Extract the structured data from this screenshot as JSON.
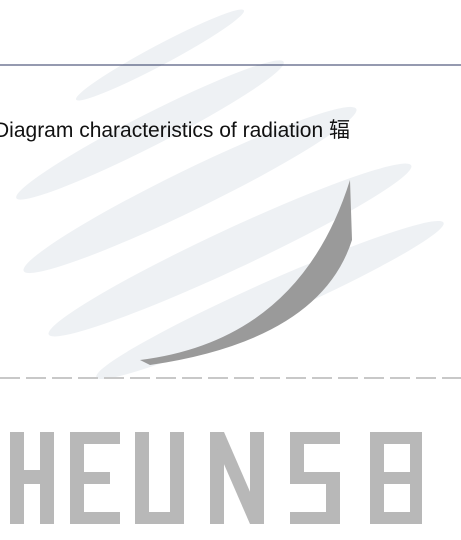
{
  "caption": "Diagram characteristics of radiation 辐"
}
